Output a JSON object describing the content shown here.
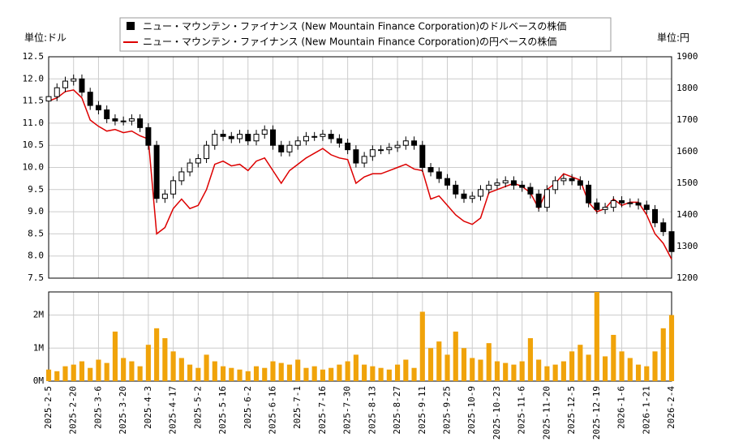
{
  "chart_data": {
    "type": "candlestick",
    "y_unit": "単位:ドル",
    "y2_unit": "単位:円",
    "categories": [
      "2025-2-5",
      null,
      null,
      "2025-2-20",
      null,
      null,
      "2025-3-6",
      null,
      null,
      "2025-3-20",
      null,
      null,
      "2025-4-3",
      null,
      null,
      "2025-4-17",
      null,
      null,
      "2025-5-2",
      null,
      null,
      "2025-5-16",
      null,
      null,
      "2025-6-2",
      null,
      null,
      "2025-6-16",
      null,
      null,
      "2025-7-1",
      null,
      null,
      "2025-7-16",
      null,
      null,
      "2025-7-30",
      null,
      null,
      "2025-8-13",
      null,
      null,
      "2025-8-27",
      null,
      null,
      "2025-9-11",
      null,
      null,
      "2025-9-25",
      null,
      null,
      "2025-10-9",
      null,
      null,
      "2025-10-23",
      null,
      null,
      "2025-11-6",
      null,
      null,
      "2025-11-20",
      null,
      null,
      "2025-12-5",
      null,
      null,
      "2025-12-19",
      null,
      null,
      "2026-1-6",
      null,
      null,
      "2026-1-21",
      null,
      null,
      "2026-2-4"
    ],
    "series": [
      {
        "name": "ニュー・マウンテン・ファイナンス (New Mountain Finance Corporation)のドルベースの株価",
        "color": "#000000",
        "open": [
          11.5,
          11.6,
          11.8,
          11.95,
          12.0,
          11.7,
          11.4,
          11.3,
          11.1,
          11.05,
          11.05,
          11.1,
          10.9,
          10.5,
          9.3,
          9.4,
          9.7,
          9.9,
          10.1,
          10.2,
          10.5,
          10.75,
          10.7,
          10.65,
          10.75,
          10.6,
          10.75,
          10.85,
          10.5,
          10.35,
          10.5,
          10.6,
          10.7,
          10.7,
          10.75,
          10.65,
          10.55,
          10.4,
          10.1,
          10.25,
          10.4,
          10.4,
          10.45,
          10.5,
          10.6,
          10.5,
          10.0,
          9.9,
          9.75,
          9.6,
          9.4,
          9.3,
          9.35,
          9.5,
          9.6,
          9.65,
          9.7,
          9.6,
          9.55,
          9.4,
          9.1,
          9.5,
          9.7,
          9.75,
          9.7,
          9.6,
          9.2,
          9.05,
          9.1,
          9.25,
          9.2,
          9.2,
          9.15,
          9.05,
          8.75,
          8.55
        ],
        "high": [
          11.7,
          11.9,
          12.05,
          12.1,
          12.1,
          11.8,
          11.5,
          11.4,
          11.2,
          11.15,
          11.2,
          11.2,
          11.0,
          10.6,
          9.5,
          9.8,
          10.0,
          10.2,
          10.3,
          10.6,
          10.85,
          10.85,
          10.8,
          10.85,
          10.85,
          10.85,
          10.95,
          10.95,
          10.6,
          10.6,
          10.7,
          10.8,
          10.8,
          10.85,
          10.85,
          10.75,
          10.65,
          10.5,
          10.35,
          10.5,
          10.5,
          10.55,
          10.6,
          10.7,
          10.7,
          10.6,
          10.1,
          10.0,
          9.85,
          9.7,
          9.5,
          9.45,
          9.6,
          9.7,
          9.75,
          9.8,
          9.8,
          9.7,
          9.65,
          9.5,
          9.6,
          9.8,
          9.85,
          9.85,
          9.8,
          9.7,
          9.3,
          9.2,
          9.35,
          9.35,
          9.3,
          9.3,
          9.25,
          9.15,
          8.85,
          8.65
        ],
        "low": [
          11.4,
          11.5,
          11.7,
          11.85,
          11.6,
          11.3,
          11.2,
          11.0,
          10.95,
          10.95,
          10.95,
          10.8,
          10.4,
          9.2,
          9.2,
          9.3,
          9.6,
          9.8,
          10.0,
          10.1,
          10.4,
          10.6,
          10.55,
          10.55,
          10.5,
          10.5,
          10.65,
          10.4,
          10.25,
          10.25,
          10.4,
          10.5,
          10.6,
          10.6,
          10.55,
          10.45,
          10.3,
          10.0,
          10.0,
          10.15,
          10.3,
          10.3,
          10.35,
          10.4,
          10.4,
          9.9,
          9.8,
          9.65,
          9.5,
          9.3,
          9.2,
          9.2,
          9.25,
          9.4,
          9.5,
          9.55,
          9.5,
          9.45,
          9.3,
          9.0,
          9.0,
          9.4,
          9.6,
          9.6,
          9.5,
          9.1,
          8.95,
          8.95,
          9.0,
          9.1,
          9.1,
          9.05,
          8.95,
          8.65,
          8.45,
          8.0
        ],
        "close": [
          11.6,
          11.8,
          11.95,
          12.0,
          11.7,
          11.4,
          11.3,
          11.1,
          11.05,
          11.05,
          11.1,
          10.9,
          10.5,
          9.3,
          9.4,
          9.7,
          9.9,
          10.1,
          10.2,
          10.5,
          10.75,
          10.7,
          10.65,
          10.75,
          10.6,
          10.75,
          10.85,
          10.5,
          10.35,
          10.5,
          10.6,
          10.7,
          10.7,
          10.75,
          10.65,
          10.55,
          10.4,
          10.1,
          10.25,
          10.4,
          10.4,
          10.45,
          10.5,
          10.6,
          10.5,
          10.0,
          9.9,
          9.75,
          9.6,
          9.4,
          9.3,
          9.35,
          9.5,
          9.6,
          9.65,
          9.7,
          9.6,
          9.55,
          9.4,
          9.1,
          9.5,
          9.7,
          9.75,
          9.7,
          9.6,
          9.2,
          9.05,
          9.1,
          9.25,
          9.2,
          9.2,
          9.15,
          9.05,
          8.75,
          8.55,
          8.1
        ]
      },
      {
        "name": "ニュー・マウンテン・ファイナンス (New Mountain Finance Corporation)の円ベースの株価",
        "color": "#dd0000",
        "axis": "y2",
        "values": [
          1760,
          1770,
          1790,
          1795,
          1770,
          1700,
          1680,
          1665,
          1670,
          1660,
          1665,
          1650,
          1640,
          1340,
          1360,
          1420,
          1450,
          1420,
          1430,
          1480,
          1560,
          1570,
          1555,
          1560,
          1540,
          1570,
          1580,
          1540,
          1500,
          1540,
          1560,
          1580,
          1595,
          1610,
          1590,
          1580,
          1575,
          1500,
          1520,
          1530,
          1530,
          1540,
          1550,
          1560,
          1545,
          1540,
          1450,
          1460,
          1430,
          1400,
          1380,
          1370,
          1390,
          1470,
          1480,
          1490,
          1500,
          1490,
          1470,
          1420,
          1480,
          1500,
          1530,
          1520,
          1510,
          1440,
          1410,
          1420,
          1450,
          1430,
          1440,
          1440,
          1400,
          1340,
          1310,
          1260
        ]
      }
    ],
    "ylim": [
      7.5,
      12.5
    ],
    "yticks": [
      7.5,
      {
        "value": 8,
        "label": "8.0"
      },
      8.5,
      {
        "value": 9,
        "label": "9.0"
      },
      9.5,
      {
        "value": 10,
        "label": "10.0"
      },
      10.5,
      {
        "value": 11,
        "label": "11.0"
      },
      11.5,
      {
        "value": 12,
        "label": "12.0"
      },
      12.5
    ],
    "y2lim": [
      1200,
      1900
    ],
    "y2ticks": [
      1200,
      1300,
      1400,
      1500,
      1600,
      1700,
      1800,
      1900
    ],
    "grid": true,
    "volume": {
      "color": "#f0a30a",
      "values": [
        350000,
        300000,
        450000,
        500000,
        600000,
        400000,
        650000,
        550000,
        1500000,
        700000,
        600000,
        450000,
        1100000,
        1600000,
        1300000,
        900000,
        700000,
        500000,
        400000,
        800000,
        600000,
        450000,
        400000,
        350000,
        300000,
        450000,
        400000,
        600000,
        550000,
        500000,
        650000,
        400000,
        450000,
        350000,
        400000,
        500000,
        600000,
        800000,
        500000,
        450000,
        400000,
        350000,
        500000,
        650000,
        400000,
        2100000,
        1000000,
        1200000,
        800000,
        1500000,
        1000000,
        700000,
        650000,
        1150000,
        600000,
        550000,
        500000,
        600000,
        1300000,
        650000,
        450000,
        500000,
        600000,
        900000,
        1100000,
        800000,
        2700000,
        750000,
        1400000,
        900000,
        700000,
        500000,
        450000,
        900000,
        1600000,
        2000000
      ],
      "ylim": [
        0,
        2700000
      ],
      "yticks": [
        {
          "value": 0,
          "label": "0M"
        },
        {
          "value": 1000000,
          "label": "1M"
        },
        {
          "value": 2000000,
          "label": "2M"
        }
      ]
    }
  }
}
